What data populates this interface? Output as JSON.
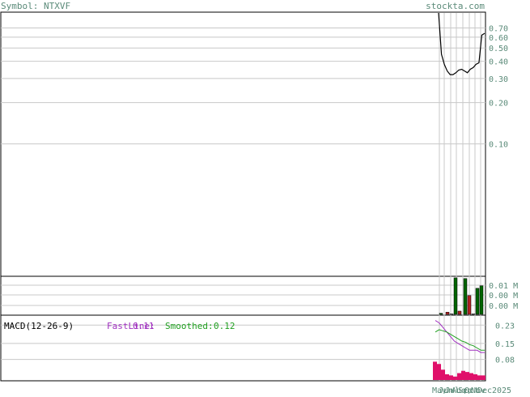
{
  "header": {
    "symbol_label": "Symbol: NTXVF",
    "site": "stockta.com"
  },
  "colors": {
    "text_teal": "#5a8a78",
    "grid": "#c8c8c8",
    "frame": "#000000",
    "up_volume": "#006400",
    "down_volume": "#b22222",
    "macd_fast": "#a030c0",
    "macd_smoothed": "#20a020",
    "macd_hist": "#e0106a"
  },
  "chart_data": [
    {
      "type": "line",
      "panel": "price",
      "scale": "log",
      "y_ticks": [
        0.7,
        0.6,
        0.5,
        0.4,
        0.3,
        0.2,
        0.1
      ],
      "y_tick_labels": [
        "0.70",
        "0.60",
        "0.50",
        "0.40",
        "0.30",
        "0.20",
        "0.10"
      ],
      "ylim": [
        0.011,
        0.9
      ],
      "series": [
        {
          "values": [
            0.9,
            0.45,
            0.38,
            0.34,
            0.32,
            0.32,
            0.33,
            0.345,
            0.35,
            0.34,
            0.33,
            0.35,
            0.36,
            0.38,
            0.39,
            0.62,
            0.64
          ]
        }
      ]
    },
    {
      "type": "bar",
      "panel": "volume",
      "y_tick_labels": [
        "0.01 M",
        "0.00 M",
        "0.00 M"
      ],
      "ylim": [
        0,
        0.0103
      ],
      "values": [
        0.0003,
        0.0006,
        0.0,
        0.0101,
        0.0009,
        0.0099,
        0.0052,
        0.0,
        0.0072,
        0.0079
      ],
      "directions": [
        "up",
        "down",
        "up",
        "up",
        "down",
        "up",
        "down",
        "up",
        "up",
        "up"
      ]
    },
    {
      "type": "line",
      "panel": "macd",
      "title": "MACD(12-26-9)",
      "legend": [
        {
          "label": "FastLine:",
          "value": "0.11"
        },
        {
          "label": "Smoothed:",
          "value": "0.12"
        }
      ],
      "y_tick_labels": [
        "0.23",
        "0.15",
        "0.08"
      ],
      "y_ticks": [
        0.23,
        0.15,
        0.08
      ],
      "ylim": [
        -0.01,
        0.27
      ],
      "series": [
        {
          "name": "FastLine",
          "values": [
            0.25,
            0.24,
            0.22,
            0.2,
            0.18,
            0.16,
            0.15,
            0.14,
            0.13,
            0.12,
            0.12,
            0.12,
            0.11,
            0.11
          ]
        },
        {
          "name": "Smoothed",
          "values": [
            0.2,
            0.21,
            0.205,
            0.2,
            0.19,
            0.18,
            0.17,
            0.16,
            0.155,
            0.145,
            0.14,
            0.13,
            0.12,
            0.12
          ]
        }
      ],
      "histogram": [
        0.07,
        0.06,
        0.035,
        0.015,
        0.01,
        0.005,
        0.02,
        0.03,
        0.025,
        0.02,
        0.015,
        0.01,
        0.01
      ]
    }
  ],
  "x_axis": {
    "labels": [
      "May",
      "Jun",
      "Jul",
      "Aug",
      "Sep",
      "Oct",
      "Nov",
      "Dec"
    ],
    "year": "2025"
  }
}
